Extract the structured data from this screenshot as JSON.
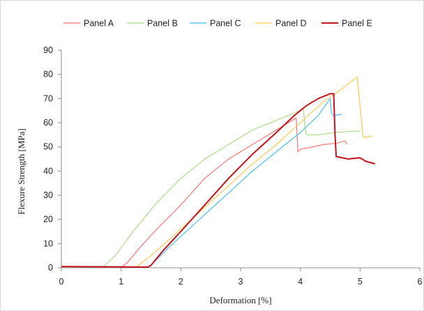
{
  "chart_data": {
    "type": "line",
    "title": "",
    "xlabel": "Deformation [%]",
    "ylabel": "Flexure Strength  [MPa]",
    "xlim": [
      0,
      6
    ],
    "ylim": [
      0,
      90
    ],
    "x_ticks": [
      "0",
      "1",
      "2",
      "3",
      "4",
      "5",
      "6"
    ],
    "y_ticks": [
      "0",
      "10",
      "20",
      "30",
      "40",
      "50",
      "60",
      "70",
      "80",
      "90"
    ],
    "grid": false,
    "legend": "top",
    "series": [
      {
        "name": "Panel A",
        "color": "#f26b6b",
        "x": [
          0,
          0.5,
          1.0,
          1.1,
          1.3,
          1.6,
          2.0,
          2.4,
          2.8,
          3.2,
          3.6,
          3.8,
          3.93,
          3.96,
          4.0,
          4.2,
          4.4,
          4.6,
          4.75,
          4.78
        ],
        "y": [
          0.5,
          0.3,
          0.3,
          2,
          8,
          16,
          26,
          37,
          45,
          51,
          57,
          60,
          62,
          48,
          49,
          50,
          51,
          51.5,
          52.5,
          51
        ]
      },
      {
        "name": "Panel B",
        "color": "#a6d984",
        "x": [
          0,
          0.5,
          0.7,
          0.9,
          1.2,
          1.6,
          2.0,
          2.4,
          2.8,
          3.2,
          3.6,
          3.9,
          4.05,
          4.08,
          4.1,
          4.3,
          4.6,
          4.9,
          5.0
        ],
        "y": [
          0.5,
          0.3,
          0.3,
          5,
          15,
          27,
          37,
          45,
          51,
          57,
          61,
          64,
          66,
          58,
          55,
          55,
          56,
          56.5,
          56.5
        ]
      },
      {
        "name": "Panel C",
        "color": "#42b7ea",
        "x": [
          0,
          1.0,
          1.45,
          1.5,
          1.7,
          2.0,
          2.4,
          2.8,
          3.2,
          3.6,
          4.0,
          4.3,
          4.5,
          4.52,
          4.55,
          4.7
        ],
        "y": [
          0.5,
          0.3,
          0.3,
          1,
          6,
          13,
          22,
          31,
          40,
          48,
          56,
          63,
          70,
          64,
          63,
          63.5
        ]
      },
      {
        "name": "Panel D",
        "color": "#f9c64e",
        "x": [
          0,
          1.0,
          1.25,
          1.5,
          2.0,
          2.4,
          2.8,
          3.2,
          3.6,
          4.0,
          4.4,
          4.7,
          4.95,
          5.02,
          5.05,
          5.1,
          5.2
        ],
        "y": [
          0.5,
          0.3,
          0.3,
          5,
          16,
          25,
          34,
          43,
          51,
          60,
          69,
          74,
          79,
          62,
          54,
          54,
          54.5
        ]
      },
      {
        "name": "Panel E",
        "color": "#c0141e",
        "x": [
          0,
          0.8,
          1.45,
          1.5,
          1.7,
          2.0,
          2.4,
          2.8,
          3.2,
          3.6,
          3.9,
          4.1,
          4.3,
          4.5,
          4.56,
          4.58,
          4.6,
          4.8,
          5.0,
          5.1,
          5.25
        ],
        "y": [
          0.5,
          0.4,
          0.3,
          1,
          7,
          15,
          26,
          37,
          47,
          56,
          63,
          67,
          70,
          72,
          72,
          55,
          46,
          45,
          45.5,
          44,
          43
        ]
      }
    ]
  }
}
